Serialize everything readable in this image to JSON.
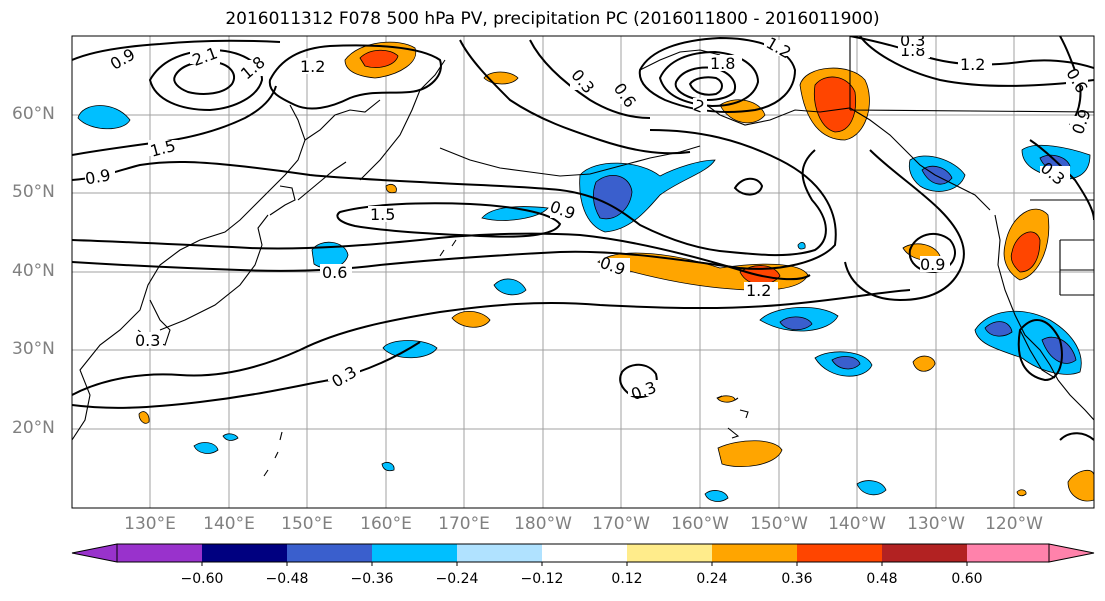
{
  "title": "2016011312 F078 500 hPa PV, precipitation PC (2016011800 - 2016011900)",
  "lat_labels": [
    "60°N",
    "50°N",
    "40°N",
    "30°N",
    "20°N"
  ],
  "lon_labels": [
    "130°E",
    "140°E",
    "150°E",
    "160°E",
    "170°E",
    "180°W",
    "170°W",
    "160°W",
    "150°W",
    "140°W",
    "130°W",
    "120°W"
  ],
  "contour_labels": [
    "0.9",
    "2.1",
    "1.8",
    "1.2",
    "1.5",
    "0.9",
    "1.5",
    "0.6",
    "0.3",
    "0.3",
    "1.2",
    "1.8",
    "0.3",
    "0.6",
    "2",
    "1.2",
    "1.8",
    "0.9",
    "0.9",
    "1.2",
    "0.9",
    "0.9",
    "0.3",
    "0.3",
    "0.6",
    "0.3"
  ],
  "colorbar": {
    "ticks": [
      "−0.60",
      "−0.48",
      "−0.36",
      "−0.24",
      "−0.12",
      "0.12",
      "0.24",
      "0.36",
      "0.48",
      "0.60"
    ],
    "colors": [
      "#9932CC",
      "#000080",
      "#3A5FCD",
      "#00BFFF",
      "#B0E2FF",
      "#FFFFFF",
      "#FFEC8B",
      "#FFA500",
      "#FF4500",
      "#B22222",
      "#FF82AB"
    ]
  }
}
